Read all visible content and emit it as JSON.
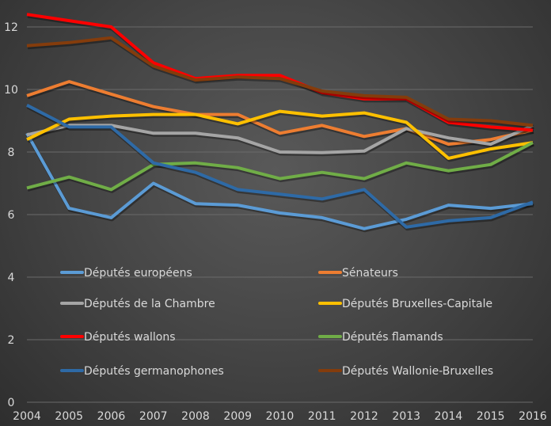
{
  "chart_data": {
    "type": "line",
    "title": "",
    "xlabel": "",
    "ylabel": "",
    "ylim": [
      0,
      12
    ],
    "yticks": [
      "0",
      "2",
      "4",
      "6",
      "8",
      "10",
      "12"
    ],
    "grid": true,
    "legend_position": "bottom-inside",
    "categories": [
      "2004",
      "2005",
      "2006",
      "2007",
      "2008",
      "2009",
      "2010",
      "2011",
      "2012",
      "2013",
      "2014",
      "2015",
      "2016"
    ],
    "series": [
      {
        "name": "Députés européens",
        "color": "#5b9bd5",
        "values": [
          8.6,
          6.2,
          5.9,
          7.0,
          6.35,
          6.3,
          6.05,
          5.9,
          5.55,
          5.85,
          6.3,
          6.2,
          6.35
        ]
      },
      {
        "name": "Sénateurs",
        "color": "#ed7d31",
        "values": [
          9.8,
          10.25,
          9.85,
          9.45,
          9.2,
          9.2,
          8.6,
          8.85,
          8.5,
          8.75,
          8.25,
          8.4,
          8.7
        ]
      },
      {
        "name": "Députés de la Chambre",
        "color": "#a5a5a5",
        "values": [
          8.55,
          8.85,
          8.85,
          8.6,
          8.6,
          8.45,
          8.0,
          7.98,
          8.03,
          8.75,
          8.45,
          8.25,
          8.85
        ]
      },
      {
        "name": "Députés Bruxelles-Capitale",
        "color": "#ffc000",
        "values": [
          8.4,
          9.05,
          9.15,
          9.2,
          9.2,
          8.9,
          9.3,
          9.15,
          9.25,
          8.95,
          7.8,
          8.1,
          8.3
        ]
      },
      {
        "name": "Députés wallons",
        "color": "#ff0000",
        "values": [
          12.4,
          12.2,
          12.0,
          10.85,
          10.35,
          10.45,
          10.45,
          9.9,
          9.7,
          9.7,
          8.95,
          8.8,
          8.7
        ]
      },
      {
        "name": "Députés flamands",
        "color": "#70ad47",
        "values": [
          6.85,
          7.2,
          6.8,
          7.6,
          7.65,
          7.5,
          7.15,
          7.35,
          7.15,
          7.65,
          7.4,
          7.6,
          8.3
        ]
      },
      {
        "name": "Députés germanophones",
        "color": "#2e6aa6",
        "values": [
          9.5,
          8.8,
          8.8,
          7.65,
          7.35,
          6.8,
          6.65,
          6.5,
          6.8,
          5.6,
          5.8,
          5.9,
          6.4
        ]
      },
      {
        "name": "Députés Wallonie-Bruxelles",
        "color": "#843c0c",
        "values": [
          11.4,
          11.5,
          11.65,
          10.75,
          10.3,
          10.4,
          10.35,
          9.95,
          9.8,
          9.75,
          9.05,
          9.0,
          8.85
        ]
      }
    ]
  }
}
